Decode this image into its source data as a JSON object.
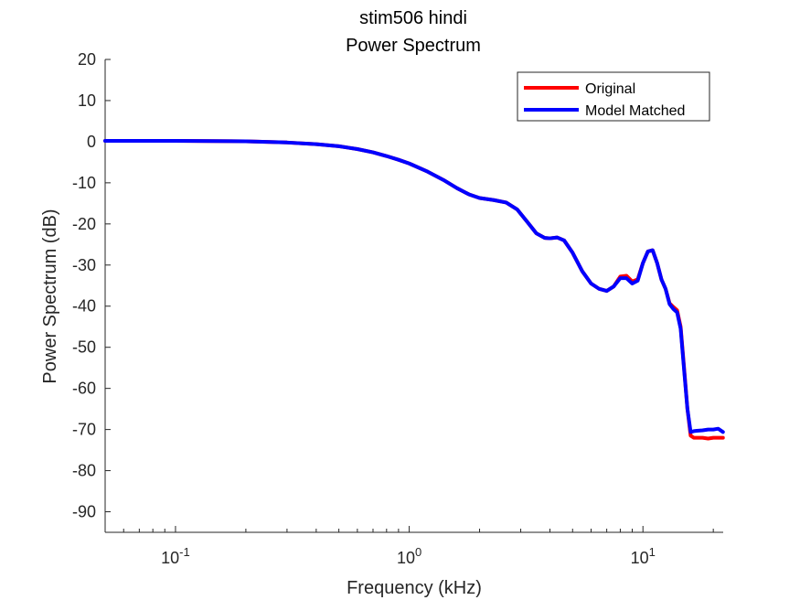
{
  "chart_data": {
    "type": "line",
    "title": "stim506 hindi",
    "subtitle": "Power Spectrum",
    "xlabel": "Frequency (kHz)",
    "ylabel": "Power Spectrum (dB)",
    "x_scale": "log",
    "xlim": [
      0.05,
      22.05
    ],
    "ylim": [
      -95,
      20
    ],
    "x_ticks": [
      {
        "value": 0.1,
        "base": "10",
        "exp": "-1"
      },
      {
        "value": 1,
        "base": "10",
        "exp": "0"
      },
      {
        "value": 10,
        "base": "10",
        "exp": "1"
      }
    ],
    "y_ticks": [
      20,
      10,
      0,
      -10,
      -20,
      -30,
      -40,
      -50,
      -60,
      -70,
      -80,
      -90
    ],
    "grid": false,
    "legend_position": "top-right",
    "series": [
      {
        "name": "Original",
        "color": "#ff0000",
        "x": [
          0.05,
          0.1,
          0.2,
          0.3,
          0.4,
          0.5,
          0.6,
          0.7,
          0.8,
          0.9,
          1.0,
          1.2,
          1.4,
          1.6,
          1.8,
          2.0,
          2.3,
          2.6,
          2.9,
          3.2,
          3.5,
          3.8,
          4.0,
          4.3,
          4.6,
          5.0,
          5.5,
          6.0,
          6.5,
          7.0,
          7.5,
          8.0,
          8.5,
          9.0,
          9.5,
          10.0,
          10.5,
          11.0,
          11.5,
          12.0,
          12.5,
          13.0,
          13.5,
          14.0,
          14.5,
          15.0,
          15.5,
          16.0,
          16.5,
          17.0,
          18.0,
          19.0,
          20.0,
          21.0,
          22.0
        ],
        "values": [
          0.2,
          0.2,
          0.1,
          -0.2,
          -0.6,
          -1.1,
          -1.8,
          -2.6,
          -3.5,
          -4.4,
          -5.3,
          -7.3,
          -9.3,
          -11.3,
          -12.8,
          -13.7,
          -14.2,
          -14.8,
          -16.5,
          -19.5,
          -22.3,
          -23.4,
          -23.5,
          -23.3,
          -24.0,
          -27.0,
          -31.5,
          -34.5,
          -35.8,
          -36.3,
          -35.2,
          -32.8,
          -32.6,
          -34.0,
          -33.5,
          -29.5,
          -26.7,
          -26.4,
          -29.5,
          -33.5,
          -35.8,
          -39.3,
          -40.2,
          -41.0,
          -45.0,
          -55.0,
          -65.0,
          -71.5,
          -72.0,
          -72.0,
          -72.0,
          -72.2,
          -72.0,
          -72.0,
          -72.0
        ]
      },
      {
        "name": "Model Matched",
        "color": "#0000ff",
        "x": [
          0.05,
          0.1,
          0.2,
          0.3,
          0.4,
          0.5,
          0.6,
          0.7,
          0.8,
          0.9,
          1.0,
          1.2,
          1.4,
          1.6,
          1.8,
          2.0,
          2.3,
          2.6,
          2.9,
          3.2,
          3.5,
          3.8,
          4.0,
          4.3,
          4.6,
          5.0,
          5.5,
          6.0,
          6.5,
          7.0,
          7.5,
          8.0,
          8.5,
          9.0,
          9.5,
          10.0,
          10.5,
          11.0,
          11.5,
          12.0,
          12.5,
          13.0,
          13.5,
          14.0,
          14.5,
          15.0,
          15.5,
          16.0,
          16.5,
          17.0,
          18.0,
          19.0,
          20.0,
          21.0,
          22.0
        ],
        "values": [
          0.2,
          0.2,
          0.1,
          -0.2,
          -0.6,
          -1.1,
          -1.8,
          -2.6,
          -3.5,
          -4.4,
          -5.3,
          -7.3,
          -9.3,
          -11.3,
          -12.8,
          -13.7,
          -14.2,
          -14.8,
          -16.5,
          -19.5,
          -22.3,
          -23.4,
          -23.5,
          -23.3,
          -24.0,
          -27.0,
          -31.5,
          -34.5,
          -35.8,
          -36.3,
          -35.2,
          -33.2,
          -33.2,
          -34.5,
          -33.8,
          -29.5,
          -26.7,
          -26.4,
          -29.5,
          -33.5,
          -35.8,
          -39.5,
          -40.7,
          -41.5,
          -45.5,
          -55.5,
          -65.0,
          -70.6,
          -70.4,
          -70.3,
          -70.2,
          -70.0,
          -70.0,
          -69.8,
          -70.6
        ]
      }
    ]
  }
}
